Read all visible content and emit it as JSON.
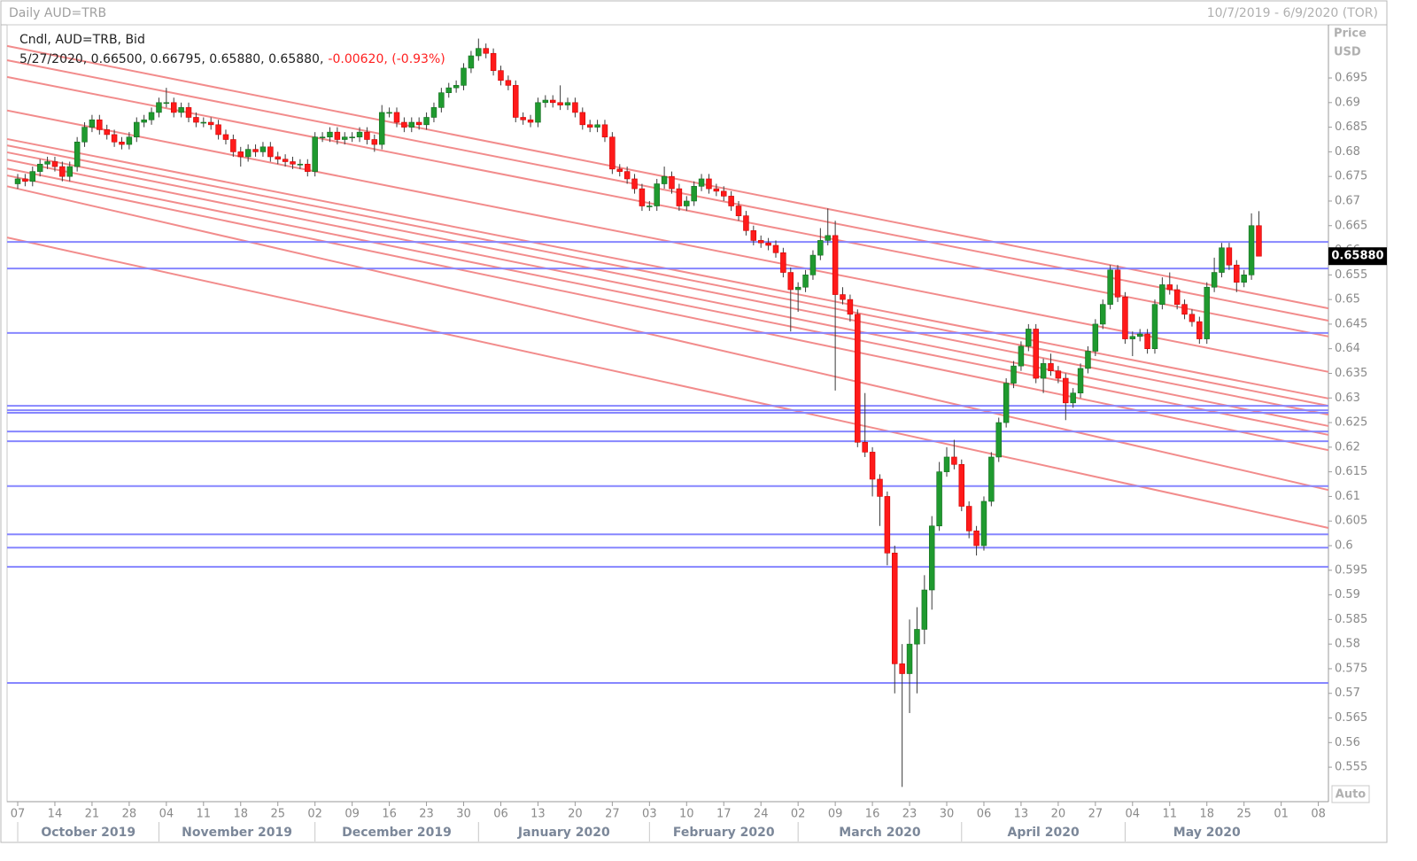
{
  "chart_data": {
    "type": "candlestick",
    "title": "Daily AUD=TRB",
    "date_range": "10/7/2019 - 6/9/2020 (TOR)",
    "study": "Cndl, AUD=TRB, Bid",
    "info": "5/27/2020, 0.66500, 0.66795, 0.65880, 0.65880,",
    "change": "-0.00620, (-0.93%)",
    "y_label": "Price",
    "y_unit": "USD",
    "scale_mode": "Auto",
    "up_color": "#1f9a2f",
    "down_color": "#ff1a1a",
    "hline_color": "#8686ff",
    "trendline_color": "#f28c8c",
    "xlim": [
      "2019-10-07",
      "2020-06-09"
    ],
    "ylim": [
      0.548,
      0.7058
    ],
    "yticks": [
      0.555,
      0.56,
      0.565,
      0.57,
      0.575,
      0.58,
      0.585,
      0.59,
      0.595,
      0.6,
      0.605,
      0.61,
      0.615,
      0.62,
      0.625,
      0.63,
      0.635,
      0.64,
      0.645,
      0.65,
      0.655,
      0.66,
      0.665,
      0.67,
      0.675,
      0.68,
      0.685,
      0.69,
      0.695
    ],
    "xticks": [
      {
        "value": "2019-10-07",
        "label": "07"
      },
      {
        "value": "2019-10-14",
        "label": "14"
      },
      {
        "value": "2019-10-21",
        "label": "21"
      },
      {
        "value": "2019-10-28",
        "label": "28"
      },
      {
        "value": "2019-11-04",
        "label": "04"
      },
      {
        "value": "2019-11-11",
        "label": "11"
      },
      {
        "value": "2019-11-18",
        "label": "18"
      },
      {
        "value": "2019-11-25",
        "label": "25"
      },
      {
        "value": "2019-12-02",
        "label": "02"
      },
      {
        "value": "2019-12-09",
        "label": "09"
      },
      {
        "value": "2019-12-16",
        "label": "16"
      },
      {
        "value": "2019-12-23",
        "label": "23"
      },
      {
        "value": "2019-12-30",
        "label": "30"
      },
      {
        "value": "2020-01-06",
        "label": "06"
      },
      {
        "value": "2020-01-13",
        "label": "13"
      },
      {
        "value": "2020-01-20",
        "label": "20"
      },
      {
        "value": "2020-01-27",
        "label": "27"
      },
      {
        "value": "2020-02-03",
        "label": "03"
      },
      {
        "value": "2020-02-10",
        "label": "10"
      },
      {
        "value": "2020-02-17",
        "label": "17"
      },
      {
        "value": "2020-02-24",
        "label": "24"
      },
      {
        "value": "2020-03-02",
        "label": "02"
      },
      {
        "value": "2020-03-09",
        "label": "09"
      },
      {
        "value": "2020-03-16",
        "label": "16"
      },
      {
        "value": "2020-03-23",
        "label": "23"
      },
      {
        "value": "2020-03-30",
        "label": "30"
      },
      {
        "value": "2020-04-06",
        "label": "06"
      },
      {
        "value": "2020-04-13",
        "label": "13"
      },
      {
        "value": "2020-04-20",
        "label": "20"
      },
      {
        "value": "2020-04-27",
        "label": "27"
      },
      {
        "value": "2020-05-04",
        "label": "04"
      },
      {
        "value": "2020-05-11",
        "label": "11"
      },
      {
        "value": "2020-05-18",
        "label": "18"
      },
      {
        "value": "2020-05-25",
        "label": "25"
      },
      {
        "value": "2020-06-01",
        "label": "01"
      },
      {
        "value": "2020-06-08",
        "label": "08"
      }
    ],
    "months": [
      {
        "value": "2019-10-01",
        "label": "October 2019"
      },
      {
        "value": "2019-11-01",
        "label": "November 2019"
      },
      {
        "value": "2019-12-01",
        "label": "December 2019"
      },
      {
        "value": "2020-01-01",
        "label": "January 2020"
      },
      {
        "value": "2020-02-01",
        "label": "February 2020"
      },
      {
        "value": "2020-03-01",
        "label": "March 2020"
      },
      {
        "value": "2020-04-01",
        "label": "April 2020"
      },
      {
        "value": "2020-05-01",
        "label": "May 2020"
      }
    ],
    "x": [
      "2019-10-07",
      "2019-10-08",
      "2019-10-09",
      "2019-10-10",
      "2019-10-11",
      "2019-10-14",
      "2019-10-15",
      "2019-10-16",
      "2019-10-17",
      "2019-10-18",
      "2019-10-21",
      "2019-10-22",
      "2019-10-23",
      "2019-10-24",
      "2019-10-25",
      "2019-10-28",
      "2019-10-29",
      "2019-10-30",
      "2019-10-31",
      "2019-11-01",
      "2019-11-04",
      "2019-11-05",
      "2019-11-06",
      "2019-11-07",
      "2019-11-08",
      "2019-11-11",
      "2019-11-12",
      "2019-11-13",
      "2019-11-14",
      "2019-11-15",
      "2019-11-18",
      "2019-11-19",
      "2019-11-20",
      "2019-11-21",
      "2019-11-22",
      "2019-11-25",
      "2019-11-26",
      "2019-11-27",
      "2019-11-28",
      "2019-11-29",
      "2019-12-02",
      "2019-12-03",
      "2019-12-04",
      "2019-12-05",
      "2019-12-06",
      "2019-12-09",
      "2019-12-10",
      "2019-12-11",
      "2019-12-12",
      "2019-12-13",
      "2019-12-16",
      "2019-12-17",
      "2019-12-18",
      "2019-12-19",
      "2019-12-20",
      "2019-12-23",
      "2019-12-24",
      "2019-12-25",
      "2019-12-26",
      "2019-12-27",
      "2019-12-30",
      "2019-12-31",
      "2020-01-01",
      "2020-01-02",
      "2020-01-03",
      "2020-01-06",
      "2020-01-07",
      "2020-01-08",
      "2020-01-09",
      "2020-01-10",
      "2020-01-13",
      "2020-01-14",
      "2020-01-15",
      "2020-01-16",
      "2020-01-17",
      "2020-01-20",
      "2020-01-21",
      "2020-01-22",
      "2020-01-23",
      "2020-01-24",
      "2020-01-27",
      "2020-01-28",
      "2020-01-29",
      "2020-01-30",
      "2020-01-31",
      "2020-02-03",
      "2020-02-04",
      "2020-02-05",
      "2020-02-06",
      "2020-02-07",
      "2020-02-10",
      "2020-02-11",
      "2020-02-12",
      "2020-02-13",
      "2020-02-14",
      "2020-02-17",
      "2020-02-18",
      "2020-02-19",
      "2020-02-20",
      "2020-02-21",
      "2020-02-24",
      "2020-02-25",
      "2020-02-26",
      "2020-02-27",
      "2020-02-28",
      "2020-03-02",
      "2020-03-03",
      "2020-03-04",
      "2020-03-05",
      "2020-03-06",
      "2020-03-09",
      "2020-03-10",
      "2020-03-11",
      "2020-03-12",
      "2020-03-13",
      "2020-03-16",
      "2020-03-17",
      "2020-03-18",
      "2020-03-19",
      "2020-03-20",
      "2020-03-23",
      "2020-03-24",
      "2020-03-25",
      "2020-03-26",
      "2020-03-27",
      "2020-03-30",
      "2020-03-31",
      "2020-04-01",
      "2020-04-02",
      "2020-04-03",
      "2020-04-06",
      "2020-04-07",
      "2020-04-08",
      "2020-04-09",
      "2020-04-10",
      "2020-04-13",
      "2020-04-14",
      "2020-04-15",
      "2020-04-16",
      "2020-04-17",
      "2020-04-20",
      "2020-04-21",
      "2020-04-22",
      "2020-04-23",
      "2020-04-24",
      "2020-04-27",
      "2020-04-28",
      "2020-04-29",
      "2020-04-30",
      "2020-05-01",
      "2020-05-04",
      "2020-05-05",
      "2020-05-06",
      "2020-05-07",
      "2020-05-08",
      "2020-05-11",
      "2020-05-12",
      "2020-05-13",
      "2020-05-14",
      "2020-05-15",
      "2020-05-18",
      "2020-05-19",
      "2020-05-20",
      "2020-05-21",
      "2020-05-22",
      "2020-05-25",
      "2020-05-26",
      "2020-05-27"
    ],
    "open": [
      0.6735,
      0.6745,
      0.674,
      0.676,
      0.6775,
      0.678,
      0.677,
      0.675,
      0.677,
      0.682,
      0.685,
      0.6865,
      0.6845,
      0.6835,
      0.682,
      0.6815,
      0.683,
      0.686,
      0.6865,
      0.688,
      0.69,
      0.69,
      0.688,
      0.689,
      0.687,
      0.686,
      0.686,
      0.6855,
      0.6835,
      0.6825,
      0.68,
      0.679,
      0.6805,
      0.68,
      0.681,
      0.679,
      0.6785,
      0.678,
      0.6775,
      0.6775,
      0.676,
      0.683,
      0.683,
      0.684,
      0.6825,
      0.683,
      0.683,
      0.684,
      0.6825,
      0.6815,
      0.688,
      0.688,
      0.686,
      0.685,
      0.686,
      0.6855,
      0.687,
      0.689,
      0.692,
      0.693,
      0.6935,
      0.697,
      0.6995,
      0.701,
      0.7,
      0.6965,
      0.6945,
      0.6935,
      0.687,
      0.6865,
      0.686,
      0.69,
      0.6905,
      0.69,
      0.6895,
      0.69,
      0.688,
      0.6855,
      0.685,
      0.6855,
      0.683,
      0.6765,
      0.676,
      0.6745,
      0.6725,
      0.669,
      0.669,
      0.6735,
      0.675,
      0.6725,
      0.669,
      0.67,
      0.673,
      0.6745,
      0.6725,
      0.672,
      0.671,
      0.669,
      0.667,
      0.664,
      0.662,
      0.6615,
      0.661,
      0.6595,
      0.6555,
      0.652,
      0.6525,
      0.655,
      0.659,
      0.662,
      0.663,
      0.651,
      0.65,
      0.647,
      0.621,
      0.619,
      0.6135,
      0.61,
      0.5985,
      0.576,
      0.574,
      0.58,
      0.583,
      0.591,
      0.604,
      0.615,
      0.618,
      0.6165,
      0.608,
      0.603,
      0.6,
      0.609,
      0.618,
      0.625,
      0.633,
      0.6365,
      0.6405,
      0.644,
      0.634,
      0.637,
      0.6355,
      0.634,
      0.629,
      0.631,
      0.636,
      0.6395,
      0.645,
      0.649,
      0.656,
      0.6505,
      0.642,
      0.6425,
      0.643,
      0.64,
      0.649,
      0.653,
      0.652,
      0.649,
      0.647,
      0.6455,
      0.642,
      0.6525,
      0.6555,
      0.6605,
      0.657,
      0.6535,
      0.655,
      0.665
    ],
    "high": [
      0.6755,
      0.6755,
      0.677,
      0.6785,
      0.679,
      0.679,
      0.678,
      0.678,
      0.683,
      0.686,
      0.6875,
      0.6875,
      0.6855,
      0.6845,
      0.683,
      0.684,
      0.687,
      0.6875,
      0.689,
      0.691,
      0.693,
      0.691,
      0.69,
      0.69,
      0.688,
      0.687,
      0.687,
      0.6865,
      0.6845,
      0.6835,
      0.681,
      0.6815,
      0.6815,
      0.682,
      0.682,
      0.68,
      0.6795,
      0.679,
      0.6785,
      0.6785,
      0.684,
      0.684,
      0.685,
      0.685,
      0.684,
      0.684,
      0.685,
      0.685,
      0.6835,
      0.6895,
      0.689,
      0.689,
      0.687,
      0.687,
      0.687,
      0.688,
      0.69,
      0.693,
      0.694,
      0.6945,
      0.698,
      0.7005,
      0.703,
      0.702,
      0.701,
      0.6975,
      0.6955,
      0.6945,
      0.688,
      0.6875,
      0.691,
      0.6915,
      0.6915,
      0.6935,
      0.691,
      0.691,
      0.689,
      0.6865,
      0.6865,
      0.6865,
      0.684,
      0.6775,
      0.677,
      0.6755,
      0.6735,
      0.67,
      0.6745,
      0.677,
      0.676,
      0.6735,
      0.671,
      0.674,
      0.6755,
      0.6755,
      0.6735,
      0.673,
      0.672,
      0.67,
      0.668,
      0.665,
      0.663,
      0.6625,
      0.662,
      0.6605,
      0.6565,
      0.6535,
      0.656,
      0.66,
      0.6645,
      0.6685,
      0.666,
      0.6525,
      0.651,
      0.648,
      0.631,
      0.62,
      0.6145,
      0.611,
      0.6,
      0.58,
      0.585,
      0.5875,
      0.594,
      0.606,
      0.617,
      0.62,
      0.6215,
      0.6175,
      0.609,
      0.604,
      0.61,
      0.619,
      0.626,
      0.634,
      0.6375,
      0.6415,
      0.645,
      0.645,
      0.638,
      0.639,
      0.6365,
      0.635,
      0.632,
      0.637,
      0.6405,
      0.646,
      0.65,
      0.657,
      0.657,
      0.6515,
      0.6435,
      0.644,
      0.644,
      0.65,
      0.6545,
      0.6555,
      0.653,
      0.65,
      0.648,
      0.6465,
      0.6535,
      0.6585,
      0.6615,
      0.6615,
      0.658,
      0.656,
      0.6675,
      0.66795
    ],
    "low": [
      0.6725,
      0.673,
      0.673,
      0.675,
      0.6765,
      0.676,
      0.674,
      0.674,
      0.676,
      0.681,
      0.684,
      0.6835,
      0.6825,
      0.681,
      0.6805,
      0.6805,
      0.682,
      0.685,
      0.6855,
      0.687,
      0.689,
      0.687,
      0.687,
      0.686,
      0.685,
      0.685,
      0.6845,
      0.6825,
      0.6815,
      0.679,
      0.677,
      0.678,
      0.679,
      0.679,
      0.678,
      0.6775,
      0.677,
      0.6765,
      0.6765,
      0.675,
      0.675,
      0.682,
      0.682,
      0.6815,
      0.6815,
      0.682,
      0.682,
      0.6815,
      0.68,
      0.6805,
      0.687,
      0.685,
      0.684,
      0.684,
      0.6845,
      0.6845,
      0.686,
      0.688,
      0.691,
      0.692,
      0.6925,
      0.696,
      0.6985,
      0.699,
      0.6955,
      0.6935,
      0.6925,
      0.686,
      0.6855,
      0.685,
      0.685,
      0.689,
      0.689,
      0.6885,
      0.6885,
      0.687,
      0.6845,
      0.684,
      0.684,
      0.682,
      0.6755,
      0.675,
      0.6735,
      0.6715,
      0.668,
      0.668,
      0.668,
      0.6725,
      0.6715,
      0.668,
      0.668,
      0.669,
      0.672,
      0.6715,
      0.671,
      0.67,
      0.668,
      0.666,
      0.663,
      0.661,
      0.6605,
      0.66,
      0.6585,
      0.6545,
      0.6435,
      0.6475,
      0.6515,
      0.654,
      0.658,
      0.661,
      0.6315,
      0.649,
      0.6455,
      0.62,
      0.618,
      0.61,
      0.604,
      0.596,
      0.57,
      0.551,
      0.566,
      0.57,
      0.58,
      0.587,
      0.603,
      0.614,
      0.6155,
      0.607,
      0.6015,
      0.598,
      0.599,
      0.608,
      0.617,
      0.624,
      0.632,
      0.6355,
      0.6395,
      0.633,
      0.631,
      0.6345,
      0.633,
      0.6255,
      0.628,
      0.63,
      0.635,
      0.6385,
      0.644,
      0.648,
      0.6495,
      0.641,
      0.6385,
      0.6415,
      0.639,
      0.639,
      0.648,
      0.651,
      0.648,
      0.646,
      0.6445,
      0.641,
      0.641,
      0.6515,
      0.6545,
      0.656,
      0.6515,
      0.6525,
      0.654,
      0.6588
    ],
    "close": [
      0.6745,
      0.674,
      0.676,
      0.6775,
      0.678,
      0.677,
      0.675,
      0.677,
      0.682,
      0.685,
      0.6865,
      0.6845,
      0.6835,
      0.682,
      0.6815,
      0.683,
      0.686,
      0.6865,
      0.688,
      0.69,
      0.69,
      0.688,
      0.689,
      0.687,
      0.686,
      0.686,
      0.6855,
      0.6835,
      0.6825,
      0.68,
      0.679,
      0.6805,
      0.68,
      0.681,
      0.679,
      0.6785,
      0.678,
      0.6775,
      0.6775,
      0.676,
      0.683,
      0.683,
      0.684,
      0.6825,
      0.683,
      0.683,
      0.684,
      0.6825,
      0.6815,
      0.688,
      0.688,
      0.686,
      0.685,
      0.686,
      0.6855,
      0.687,
      0.689,
      0.692,
      0.693,
      0.6935,
      0.697,
      0.6995,
      0.701,
      0.7,
      0.6965,
      0.6945,
      0.6935,
      0.687,
      0.6865,
      0.686,
      0.69,
      0.6905,
      0.69,
      0.6895,
      0.69,
      0.688,
      0.6855,
      0.685,
      0.6855,
      0.683,
      0.6765,
      0.676,
      0.6745,
      0.6725,
      0.669,
      0.669,
      0.6735,
      0.675,
      0.6725,
      0.669,
      0.67,
      0.673,
      0.6745,
      0.6725,
      0.672,
      0.671,
      0.669,
      0.667,
      0.664,
      0.662,
      0.6615,
      0.661,
      0.6595,
      0.6555,
      0.652,
      0.6525,
      0.655,
      0.659,
      0.662,
      0.663,
      0.651,
      0.65,
      0.647,
      0.621,
      0.619,
      0.6135,
      0.61,
      0.5985,
      0.576,
      0.574,
      0.58,
      0.583,
      0.591,
      0.604,
      0.615,
      0.618,
      0.6165,
      0.608,
      0.603,
      0.6,
      0.609,
      0.618,
      0.625,
      0.633,
      0.6365,
      0.6405,
      0.644,
      0.634,
      0.637,
      0.6355,
      0.634,
      0.629,
      0.631,
      0.636,
      0.6395,
      0.645,
      0.649,
      0.656,
      0.6505,
      0.642,
      0.6425,
      0.643,
      0.64,
      0.649,
      0.653,
      0.652,
      0.649,
      0.647,
      0.6455,
      0.642,
      0.6525,
      0.6555,
      0.6605,
      0.657,
      0.6535,
      0.655,
      0.665,
      0.6588
    ],
    "hlines": [
      0.6617,
      0.6563,
      0.6432,
      0.6284,
      0.6275,
      0.627,
      0.6232,
      0.6212,
      0.6121,
      0.6023,
      0.5996,
      0.5957,
      0.5721
    ],
    "trendlines": [
      {
        "start": 0.7015,
        "end": 0.6482
      },
      {
        "start": 0.6986,
        "end": 0.6457
      },
      {
        "start": 0.6952,
        "end": 0.6425
      },
      {
        "start": 0.6884,
        "end": 0.6353
      },
      {
        "start": 0.6826,
        "end": 0.6299
      },
      {
        "start": 0.6813,
        "end": 0.6284
      },
      {
        "start": 0.6799,
        "end": 0.6266
      },
      {
        "start": 0.6784,
        "end": 0.6243
      },
      {
        "start": 0.6766,
        "end": 0.6225
      },
      {
        "start": 0.6752,
        "end": 0.6194
      },
      {
        "start": 0.673,
        "end": 0.6113
      },
      {
        "start": 0.6626,
        "end": 0.6036
      }
    ],
    "last_price": {
      "value": 0.6588,
      "label": "0.65880"
    }
  }
}
